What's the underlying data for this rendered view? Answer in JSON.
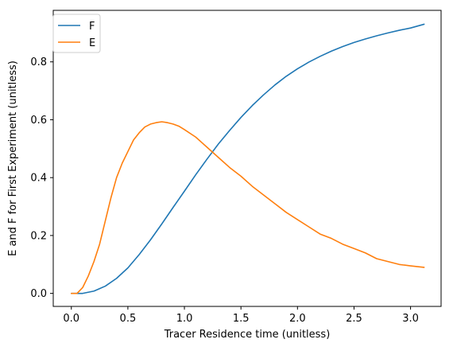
{
  "chart_data": {
    "type": "line",
    "title": "",
    "xlabel": "Tracer Residence time (unitless)",
    "ylabel": "E and F for First Experiment (unitless)",
    "xlim": [
      -0.16,
      3.27
    ],
    "ylim": [
      -0.045,
      0.978
    ],
    "xticks": [
      0.0,
      0.5,
      1.0,
      1.5,
      2.0,
      2.5,
      3.0
    ],
    "xtick_labels": [
      "0.0",
      "0.5",
      "1.0",
      "1.5",
      "2.0",
      "2.5",
      "3.0"
    ],
    "yticks": [
      0.0,
      0.2,
      0.4,
      0.6,
      0.8
    ],
    "ytick_labels": [
      "0.0",
      "0.2",
      "0.4",
      "0.6",
      "0.8"
    ],
    "grid": false,
    "legend_position": "top-left",
    "series": [
      {
        "name": "F",
        "color": "#1f77b4",
        "x": [
          0.0,
          0.1,
          0.2,
          0.3,
          0.4,
          0.5,
          0.6,
          0.7,
          0.8,
          0.9,
          1.0,
          1.1,
          1.2,
          1.3,
          1.4,
          1.5,
          1.6,
          1.7,
          1.8,
          1.9,
          2.0,
          2.1,
          2.2,
          2.3,
          2.4,
          2.5,
          2.6,
          2.7,
          2.8,
          2.9,
          3.0,
          3.12
        ],
        "y": [
          0.0,
          0.0,
          0.008,
          0.025,
          0.052,
          0.088,
          0.134,
          0.185,
          0.24,
          0.297,
          0.353,
          0.41,
          0.464,
          0.516,
          0.563,
          0.608,
          0.649,
          0.686,
          0.72,
          0.75,
          0.776,
          0.799,
          0.819,
          0.837,
          0.853,
          0.867,
          0.879,
          0.89,
          0.9,
          0.909,
          0.917,
          0.93
        ]
      },
      {
        "name": "E",
        "color": "#ff7f0e",
        "x": [
          0.0,
          0.05,
          0.1,
          0.15,
          0.2,
          0.25,
          0.3,
          0.35,
          0.4,
          0.45,
          0.5,
          0.55,
          0.6,
          0.65,
          0.7,
          0.75,
          0.8,
          0.85,
          0.9,
          0.95,
          1.0,
          1.1,
          1.2,
          1.3,
          1.4,
          1.5,
          1.6,
          1.7,
          1.8,
          1.9,
          2.0,
          2.1,
          2.2,
          2.3,
          2.4,
          2.5,
          2.6,
          2.7,
          2.8,
          2.9,
          3.0,
          3.12
        ],
        "y": [
          0.0,
          0.0,
          0.02,
          0.06,
          0.11,
          0.17,
          0.25,
          0.33,
          0.4,
          0.45,
          0.49,
          0.53,
          0.555,
          0.575,
          0.585,
          0.59,
          0.593,
          0.59,
          0.585,
          0.578,
          0.566,
          0.54,
          0.505,
          0.47,
          0.435,
          0.405,
          0.37,
          0.34,
          0.31,
          0.28,
          0.255,
          0.23,
          0.205,
          0.19,
          0.17,
          0.155,
          0.14,
          0.12,
          0.11,
          0.1,
          0.095,
          0.09
        ]
      }
    ]
  }
}
